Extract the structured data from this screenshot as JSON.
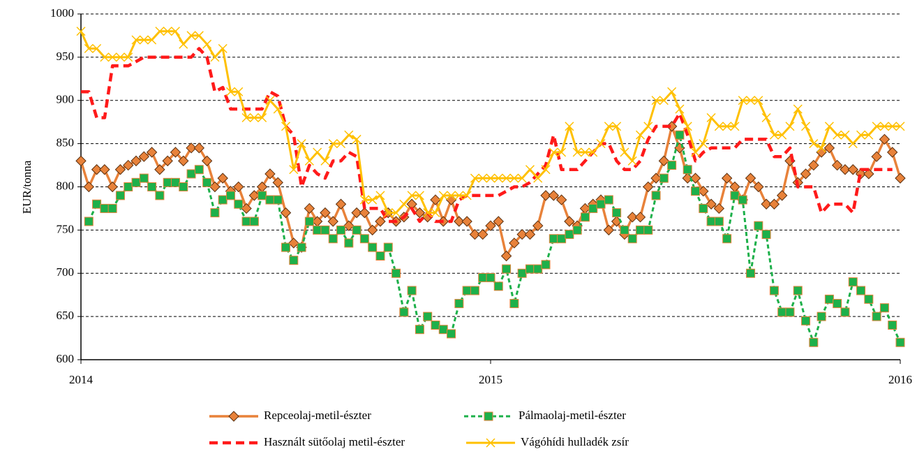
{
  "chart_data": {
    "type": "line",
    "ylabel": "EUR/tonna",
    "categories": [
      "2014",
      null,
      null,
      null,
      null,
      null,
      null,
      null,
      null,
      null,
      null,
      null,
      null,
      null,
      null,
      null,
      null,
      null,
      null,
      null,
      null,
      null,
      null,
      null,
      null,
      null,
      null,
      null,
      null,
      null,
      null,
      null,
      null,
      null,
      null,
      null,
      null,
      null,
      null,
      null,
      null,
      null,
      null,
      null,
      null,
      null,
      null,
      null,
      null,
      null,
      null,
      null,
      "2015",
      null,
      null,
      null,
      null,
      null,
      null,
      null,
      null,
      null,
      null,
      null,
      null,
      null,
      null,
      null,
      null,
      null,
      null,
      null,
      null,
      null,
      null,
      null,
      null,
      null,
      null,
      null,
      null,
      null,
      null,
      null,
      null,
      null,
      null,
      null,
      null,
      null,
      null,
      null,
      null,
      null,
      null,
      null,
      null,
      null,
      null,
      null,
      null,
      null,
      null,
      null,
      "2016"
    ],
    "ylim": [
      600,
      1000
    ],
    "yticks": [
      600,
      650,
      700,
      750,
      800,
      850,
      900,
      950,
      1000
    ],
    "grid": true,
    "series": [
      {
        "name": "Repceolaj-metil-észter",
        "color": "#e8823a",
        "marker": "diamond",
        "dash": false,
        "values": [
          830,
          800,
          820,
          820,
          800,
          820,
          825,
          830,
          835,
          840,
          820,
          830,
          840,
          830,
          845,
          845,
          830,
          800,
          810,
          795,
          800,
          775,
          790,
          800,
          815,
          805,
          770,
          735,
          730,
          775,
          760,
          770,
          760,
          780,
          755,
          770,
          770,
          750,
          760,
          770,
          760,
          765,
          780,
          770,
          765,
          785,
          760,
          785,
          760,
          760,
          745,
          745,
          755,
          760,
          720,
          735,
          745,
          745,
          755,
          790,
          790,
          785,
          760,
          755,
          775,
          780,
          785,
          750,
          760,
          745,
          765,
          765,
          800,
          810,
          830,
          870,
          845,
          810,
          810,
          795,
          780,
          775,
          810,
          800,
          785,
          810,
          800,
          780,
          780,
          790,
          830,
          805,
          815,
          825,
          840,
          845,
          825,
          820,
          820,
          815,
          815,
          835,
          855,
          840,
          810
        ]
      },
      {
        "name": "Pálmaolaj-metil-észter",
        "color": "#1db04a",
        "marker": "square",
        "dash": true,
        "values": [
          null,
          760,
          780,
          775,
          775,
          790,
          800,
          805,
          810,
          800,
          790,
          805,
          805,
          800,
          815,
          820,
          805,
          770,
          785,
          790,
          780,
          760,
          760,
          790,
          785,
          785,
          730,
          715,
          730,
          760,
          750,
          750,
          740,
          750,
          735,
          750,
          740,
          730,
          720,
          730,
          700,
          655,
          680,
          635,
          650,
          640,
          635,
          630,
          665,
          680,
          680,
          695,
          695,
          685,
          705,
          665,
          700,
          705,
          705,
          710,
          740,
          740,
          745,
          750,
          765,
          775,
          780,
          785,
          770,
          750,
          740,
          750,
          750,
          790,
          810,
          825,
          860,
          820,
          795,
          775,
          760,
          760,
          740,
          790,
          785,
          700,
          755,
          745,
          680,
          655,
          655,
          680,
          645,
          620,
          650,
          670,
          665,
          655,
          690,
          680,
          670,
          650,
          660,
          640,
          620
        ]
      },
      {
        "name": "Használt sütőolaj metil-észter",
        "color": "#ff1a1a",
        "marker": null,
        "dash": true,
        "values": [
          910,
          910,
          880,
          880,
          940,
          940,
          940,
          945,
          950,
          950,
          950,
          950,
          950,
          950,
          950,
          960,
          950,
          910,
          915,
          890,
          890,
          890,
          890,
          890,
          910,
          905,
          870,
          860,
          800,
          825,
          815,
          810,
          830,
          830,
          840,
          835,
          775,
          775,
          775,
          760,
          760,
          765,
          775,
          760,
          770,
          760,
          760,
          760,
          785,
          790,
          790,
          790,
          790,
          790,
          795,
          800,
          800,
          805,
          815,
          825,
          860,
          820,
          820,
          820,
          830,
          840,
          850,
          850,
          830,
          820,
          820,
          830,
          855,
          870,
          870,
          870,
          885,
          860,
          830,
          840,
          845,
          845,
          845,
          845,
          855,
          855,
          855,
          855,
          835,
          835,
          845,
          800,
          800,
          800,
          770,
          780,
          780,
          780,
          770,
          820,
          820,
          820,
          820,
          820,
          null
        ]
      },
      {
        "name": "Vágóhídi hulladék zsír",
        "color": "#ffc000",
        "marker": "x",
        "dash": false,
        "values": [
          980,
          960,
          960,
          950,
          950,
          950,
          950,
          970,
          970,
          970,
          980,
          980,
          980,
          965,
          975,
          975,
          965,
          950,
          960,
          910,
          910,
          880,
          880,
          880,
          900,
          890,
          870,
          820,
          850,
          830,
          840,
          830,
          850,
          850,
          860,
          855,
          785,
          785,
          790,
          770,
          770,
          780,
          790,
          790,
          770,
          770,
          790,
          790,
          790,
          790,
          810,
          810,
          810,
          810,
          810,
          810,
          810,
          820,
          810,
          820,
          840,
          840,
          870,
          840,
          840,
          840,
          850,
          870,
          870,
          840,
          830,
          860,
          870,
          900,
          900,
          910,
          890,
          870,
          840,
          850,
          880,
          870,
          870,
          870,
          900,
          900,
          900,
          880,
          860,
          860,
          870,
          890,
          870,
          850,
          845,
          870,
          860,
          860,
          850,
          860,
          860,
          870,
          870,
          870,
          870
        ]
      }
    ]
  }
}
